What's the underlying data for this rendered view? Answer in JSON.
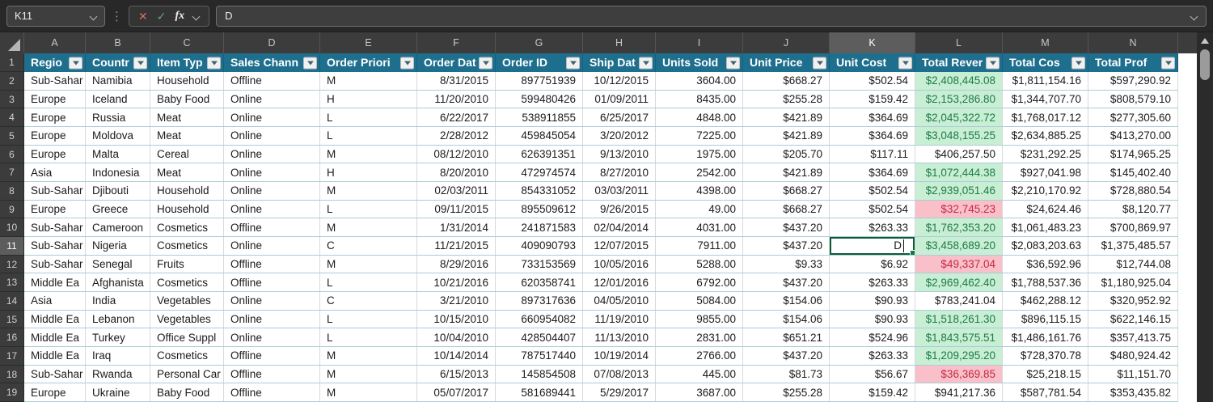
{
  "formula_bar": {
    "cell_reference": "K11",
    "formula_value": "D",
    "cancel_icon": "✕",
    "enter_icon": "✓",
    "fx_label": "fx",
    "divider_dots": "⋮"
  },
  "colors": {
    "header_bg": "#1E6F8E",
    "header_text": "#FFFFFF",
    "green_bg": "#C8EED4",
    "green_text": "#1E7B47",
    "red_bg": "#F9C0C9",
    "red_text": "#C22944",
    "row_border": "#AACDD8",
    "grid_border": "#D9D9D9",
    "accent_green": "#107C41",
    "cancel_red": "#D96A5F",
    "check_green": "#5FA97F"
  },
  "sheet": {
    "column_letters": [
      "A",
      "B",
      "C",
      "D",
      "E",
      "F",
      "G",
      "H",
      "I",
      "J",
      "K",
      "L",
      "M",
      "N"
    ],
    "active_column_letter": "K",
    "active_row_number": 11,
    "row_numbers": [
      1,
      2,
      3,
      4,
      5,
      6,
      7,
      8,
      9,
      10,
      11,
      12,
      13,
      14,
      15,
      16,
      17,
      18,
      19
    ],
    "headers": [
      "Regio",
      "Countr",
      "Item Typ",
      "Sales Chann",
      "Order Priori",
      "Order Dat",
      "Order ID",
      "Ship Dat",
      "Units Sold",
      "Unit Price",
      "Unit Cost",
      "Total Rever",
      "Total Cos",
      "Total Prof"
    ],
    "editing_cell": {
      "row": 11,
      "column_letter": "K",
      "value": "D"
    },
    "rows": [
      {
        "revenue": "green",
        "cells": [
          "Sub-Sahar",
          "Namibia",
          "Household",
          "Offline",
          "M",
          "8/31/2015",
          "897751939",
          "10/12/2015",
          "3604.00",
          "$668.27",
          "$502.54",
          "$2,408,445.08",
          "$1,811,154.16",
          "$597,290.92"
        ]
      },
      {
        "revenue": "green",
        "cells": [
          "Europe",
          "Iceland",
          "Baby Food",
          "Online",
          "H",
          "11/20/2010",
          "599480426",
          "01/09/2011",
          "8435.00",
          "$255.28",
          "$159.42",
          "$2,153,286.80",
          "$1,344,707.70",
          "$808,579.10"
        ]
      },
      {
        "revenue": "green",
        "cells": [
          "Europe",
          "Russia",
          "Meat",
          "Online",
          "L",
          "6/22/2017",
          "538911855",
          "6/25/2017",
          "4848.00",
          "$421.89",
          "$364.69",
          "$2,045,322.72",
          "$1,768,017.12",
          "$277,305.60"
        ]
      },
      {
        "revenue": "green",
        "cells": [
          "Europe",
          "Moldova",
          "Meat",
          "Online",
          "L",
          "2/28/2012",
          "459845054",
          "3/20/2012",
          "7225.00",
          "$421.89",
          "$364.69",
          "$3,048,155.25",
          "$2,634,885.25",
          "$413,270.00"
        ]
      },
      {
        "revenue": "plain",
        "cells": [
          "Europe",
          "Malta",
          "Cereal",
          "Online",
          "M",
          "08/12/2010",
          "626391351",
          "9/13/2010",
          "1975.00",
          "$205.70",
          "$117.11",
          "$406,257.50",
          "$231,292.25",
          "$174,965.25"
        ]
      },
      {
        "revenue": "green",
        "cells": [
          "Asia",
          "Indonesia",
          "Meat",
          "Online",
          "H",
          "8/20/2010",
          "472974574",
          "8/27/2010",
          "2542.00",
          "$421.89",
          "$364.69",
          "$1,072,444.38",
          "$927,041.98",
          "$145,402.40"
        ]
      },
      {
        "revenue": "green",
        "cells": [
          "Sub-Sahar",
          "Djibouti",
          "Household",
          "Online",
          "M",
          "02/03/2011",
          "854331052",
          "03/03/2011",
          "4398.00",
          "$668.27",
          "$502.54",
          "$2,939,051.46",
          "$2,210,170.92",
          "$728,880.54"
        ]
      },
      {
        "revenue": "red",
        "cells": [
          "Europe",
          "Greece",
          "Household",
          "Online",
          "L",
          "09/11/2015",
          "895509612",
          "9/26/2015",
          "49.00",
          "$668.27",
          "$502.54",
          "$32,745.23",
          "$24,624.46",
          "$8,120.77"
        ]
      },
      {
        "revenue": "green",
        "cells": [
          "Sub-Sahar",
          "Cameroon",
          "Cosmetics",
          "Offline",
          "M",
          "1/31/2014",
          "241871583",
          "02/04/2014",
          "4031.00",
          "$437.20",
          "$263.33",
          "$1,762,353.20",
          "$1,061,483.23",
          "$700,869.97"
        ]
      },
      {
        "revenue": "green",
        "cells": [
          "Sub-Sahar",
          "Nigeria",
          "Cosmetics",
          "Online",
          "C",
          "11/21/2015",
          "409090793",
          "12/07/2015",
          "7911.00",
          "$437.20",
          "D",
          "$3,458,689.20",
          "$2,083,203.63",
          "$1,375,485.57"
        ]
      },
      {
        "revenue": "red",
        "cells": [
          "Sub-Sahar",
          "Senegal",
          "Fruits",
          "Offline",
          "M",
          "8/29/2016",
          "733153569",
          "10/05/2016",
          "5288.00",
          "$9.33",
          "$6.92",
          "$49,337.04",
          "$36,592.96",
          "$12,744.08"
        ]
      },
      {
        "revenue": "green",
        "cells": [
          "Middle Ea",
          "Afghanista",
          "Cosmetics",
          "Offline",
          "L",
          "10/21/2016",
          "620358741",
          "12/01/2016",
          "6792.00",
          "$437.20",
          "$263.33",
          "$2,969,462.40",
          "$1,788,537.36",
          "$1,180,925.04"
        ]
      },
      {
        "revenue": "plain",
        "cells": [
          "Asia",
          "India",
          "Vegetables",
          "Online",
          "C",
          "3/21/2010",
          "897317636",
          "04/05/2010",
          "5084.00",
          "$154.06",
          "$90.93",
          "$783,241.04",
          "$462,288.12",
          "$320,952.92"
        ]
      },
      {
        "revenue": "green",
        "cells": [
          "Middle Ea",
          "Lebanon",
          "Vegetables",
          "Online",
          "L",
          "10/15/2010",
          "660954082",
          "11/19/2010",
          "9855.00",
          "$154.06",
          "$90.93",
          "$1,518,261.30",
          "$896,115.15",
          "$622,146.15"
        ]
      },
      {
        "revenue": "green",
        "cells": [
          "Middle Ea",
          "Turkey",
          "Office Suppl",
          "Online",
          "L",
          "10/04/2010",
          "428504407",
          "11/13/2010",
          "2831.00",
          "$651.21",
          "$524.96",
          "$1,843,575.51",
          "$1,486,161.76",
          "$357,413.75"
        ]
      },
      {
        "revenue": "green",
        "cells": [
          "Middle Ea",
          "Iraq",
          "Cosmetics",
          "Offline",
          "M",
          "10/14/2014",
          "787517440",
          "10/19/2014",
          "2766.00",
          "$437.20",
          "$263.33",
          "$1,209,295.20",
          "$728,370.78",
          "$480,924.42"
        ]
      },
      {
        "revenue": "red",
        "cells": [
          "Sub-Sahar",
          "Rwanda",
          "Personal Car",
          "Offline",
          "M",
          "6/15/2013",
          "145854508",
          "07/08/2013",
          "445.00",
          "$81.73",
          "$56.67",
          "$36,369.85",
          "$25,218.15",
          "$11,151.70"
        ]
      },
      {
        "revenue": "plain",
        "cells": [
          "Europe",
          "Ukraine",
          "Baby Food",
          "Offline",
          "M",
          "05/07/2017",
          "581689441",
          "5/29/2017",
          "3687.00",
          "$255.28",
          "$159.42",
          "$941,217.36",
          "$587,781.54",
          "$353,435.82"
        ]
      }
    ]
  }
}
